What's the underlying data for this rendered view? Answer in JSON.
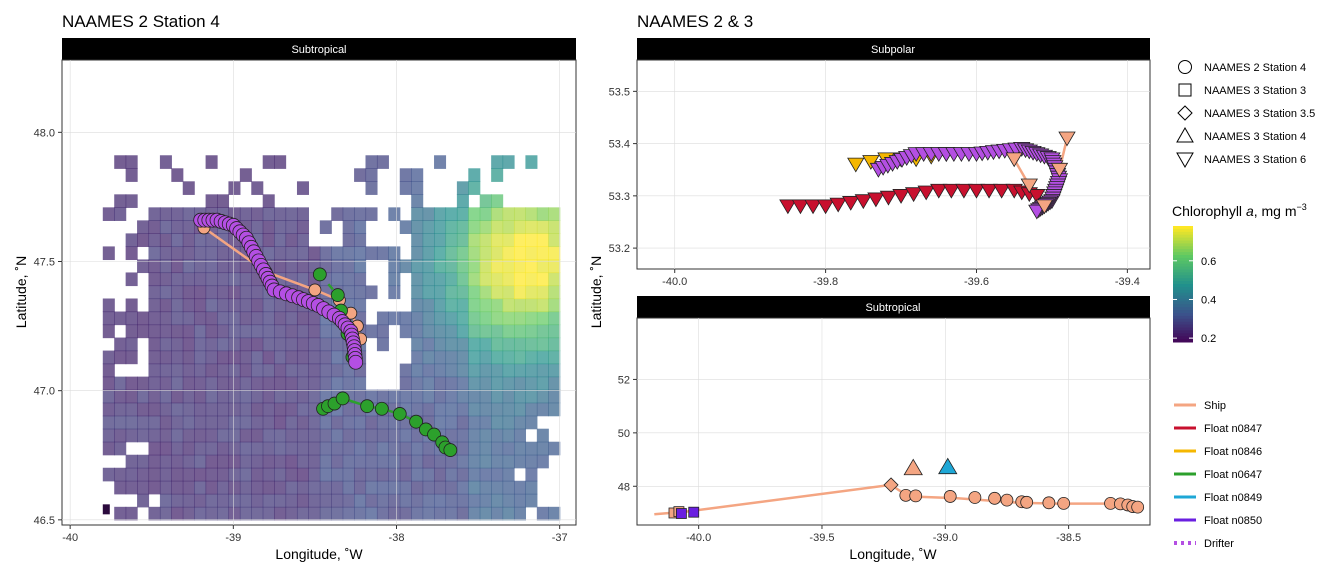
{
  "chart_data": [
    {
      "type": "scatter",
      "title": "NAAMES 2 Station 4",
      "facet": "Subtropical",
      "xlabel": "Longitude, ˚W",
      "ylabel": "Latitude, ˚N",
      "xlim": [
        -40.05,
        -36.9
      ],
      "ylim": [
        46.48,
        48.28
      ],
      "xticks": [
        -40,
        -39,
        -38,
        -37
      ],
      "yticks": [
        46.5,
        47.0,
        47.5,
        48.0
      ],
      "xtick_labels": [
        "-40",
        "-39",
        "-38",
        "-37"
      ],
      "ytick_labels": [
        "46.5",
        "47.0",
        "47.5",
        "48.0"
      ],
      "background": "chlorophyll raster (mg m-3)",
      "series": [
        {
          "name": "Ship",
          "color": "#F4A582",
          "points": [
            [
              -39.18,
              47.63
            ],
            [
              -38.8,
              47.46
            ],
            [
              -38.5,
              47.39
            ],
            [
              -38.35,
              47.35
            ],
            [
              -38.28,
              47.3
            ],
            [
              -38.24,
              47.25
            ],
            [
              -38.22,
              47.2
            ]
          ]
        },
        {
          "name": "Float n0647",
          "color": "#2CA02C",
          "points": [
            [
              -38.47,
              47.45
            ],
            [
              -38.36,
              47.37
            ],
            [
              -38.34,
              47.31
            ],
            [
              -38.3,
              47.22
            ],
            [
              -38.27,
              47.13
            ],
            [
              -38.45,
              46.93
            ],
            [
              -38.42,
              46.94
            ],
            [
              -38.38,
              46.95
            ],
            [
              -38.33,
              46.97
            ],
            [
              -38.18,
              46.94
            ],
            [
              -38.09,
              46.93
            ],
            [
              -37.98,
              46.91
            ],
            [
              -37.88,
              46.88
            ],
            [
              -37.82,
              46.85
            ],
            [
              -37.77,
              46.83
            ],
            [
              -37.72,
              46.8
            ],
            [
              -37.7,
              46.78
            ],
            [
              -37.67,
              46.77
            ]
          ]
        },
        {
          "name": "Drifter",
          "color": "#B44FE3",
          "points": [
            [
              -39.2,
              47.66
            ],
            [
              -39.1,
              47.66
            ],
            [
              -39.0,
              47.64
            ],
            [
              -38.92,
              47.59
            ],
            [
              -38.86,
              47.52
            ],
            [
              -38.8,
              47.45
            ],
            [
              -38.75,
              47.39
            ],
            [
              -38.6,
              47.36
            ],
            [
              -38.48,
              47.33
            ],
            [
              -38.35,
              47.28
            ],
            [
              -38.28,
              47.23
            ],
            [
              -38.26,
              47.17
            ],
            [
              -38.25,
              47.11
            ]
          ]
        }
      ]
    },
    {
      "type": "scatter",
      "title": "NAAMES 2 & 3",
      "facet": "Subpolar",
      "xlabel": "Longitude, ˚W",
      "ylabel": "Latitude, ˚N",
      "xlim": [
        -40.05,
        -39.37
      ],
      "ylim": [
        53.16,
        53.56
      ],
      "xticks": [
        -40.0,
        -39.8,
        -39.6,
        -39.4
      ],
      "yticks": [
        53.2,
        53.3,
        53.4,
        53.5
      ],
      "xtick_labels": [
        "-40.0",
        "-39.8",
        "-39.6",
        "-39.4"
      ],
      "ytick_labels": [
        "53.2",
        "53.3",
        "53.4",
        "53.5"
      ],
      "shape": "NAAMES 3 Station 6",
      "series": [
        {
          "name": "Float n0847",
          "color": "#C8102E",
          "points": [
            [
              -39.85,
              53.28
            ],
            [
              -39.8,
              53.28
            ],
            [
              -39.75,
              53.29
            ],
            [
              -39.7,
              53.3
            ],
            [
              -39.65,
              53.31
            ],
            [
              -39.6,
              53.31
            ],
            [
              -39.55,
              53.31
            ],
            [
              -39.52,
              53.3
            ]
          ]
        },
        {
          "name": "Float n0846",
          "color": "#F5B700",
          "points": [
            [
              -39.76,
              53.36
            ],
            [
              -39.72,
              53.37
            ],
            [
              -39.68,
              53.37
            ],
            [
              -39.64,
              53.38
            ]
          ]
        },
        {
          "name": "Drifter",
          "color": "#B44FE3",
          "points": [
            [
              -39.73,
              53.35
            ],
            [
              -39.68,
              53.38
            ],
            [
              -39.6,
              53.38
            ],
            [
              -39.54,
              53.39
            ],
            [
              -39.5,
              53.37
            ],
            [
              -39.49,
              53.33
            ],
            [
              -39.5,
              53.29
            ],
            [
              -39.52,
              53.27
            ]
          ]
        },
        {
          "name": "Ship",
          "color": "#F4A582",
          "points": [
            [
              -39.55,
              53.37
            ],
            [
              -39.53,
              53.32
            ],
            [
              -39.51,
              53.28
            ],
            [
              -39.49,
              53.35
            ],
            [
              -39.48,
              53.41
            ]
          ]
        }
      ]
    },
    {
      "type": "scatter",
      "title": "",
      "facet": "Subtropical",
      "xlabel": "Longitude, ˚W",
      "ylabel": "Latitude, ˚N",
      "xlim": [
        -40.25,
        -38.17
      ],
      "ylim": [
        46.55,
        54.3
      ],
      "xticks": [
        -40.0,
        -39.5,
        -39.0,
        -38.5
      ],
      "yticks": [
        48,
        50,
        52
      ],
      "xtick_labels": [
        "-40.0",
        "-39.5",
        "-39.0",
        "-38.5"
      ],
      "ytick_labels": [
        "48",
        "50",
        "52"
      ],
      "series": [
        {
          "name": "Ship",
          "color": "#F4A582",
          "points": [
            [
              -40.18,
              46.95
            ],
            [
              -40.05,
              47.05
            ],
            [
              -39.22,
              48.05
            ],
            [
              -39.15,
              47.62
            ],
            [
              -38.95,
              47.55
            ],
            [
              -38.7,
              47.38
            ],
            [
              -38.55,
              47.35
            ],
            [
              -38.3,
              47.35
            ],
            [
              -38.2,
              47.22
            ]
          ]
        },
        {
          "name": "NAAMES 2 Station 4",
          "color": "#F4A582",
          "points": [
            [
              -39.16,
              47.66
            ],
            [
              -39.12,
              47.64
            ],
            [
              -38.98,
              47.62
            ],
            [
              -38.88,
              47.58
            ],
            [
              -38.8,
              47.55
            ],
            [
              -38.75,
              47.48
            ],
            [
              -38.69,
              47.42
            ],
            [
              -38.67,
              47.4
            ],
            [
              -38.58,
              47.38
            ],
            [
              -38.52,
              47.36
            ],
            [
              -38.33,
              47.36
            ],
            [
              -38.29,
              47.34
            ],
            [
              -38.26,
              47.3
            ],
            [
              -38.24,
              47.24
            ],
            [
              -38.22,
              47.22
            ]
          ]
        },
        {
          "name": "NAAMES 3 Station 3",
          "color": "#F4A582",
          "points": [
            [
              -40.1,
              47.0
            ],
            [
              -40.08,
              47.05
            ]
          ]
        },
        {
          "name": "NAAMES 3 Station 3.5",
          "color": "#F4A582",
          "points": [
            [
              -39.22,
              48.05
            ]
          ]
        },
        {
          "name": "NAAMES 3 Station 4 (Ship)",
          "color": "#F4A582",
          "points": [
            [
              -39.13,
              48.7
            ]
          ]
        },
        {
          "name": "NAAMES 3 Station 4 (Float n0849)",
          "color": "#1EA7D6",
          "points": [
            [
              -38.99,
              48.74
            ]
          ]
        },
        {
          "name": "Float n0850",
          "color": "#6A1FE0",
          "points": [
            [
              -40.07,
              46.98
            ],
            [
              -40.02,
              47.03
            ]
          ]
        }
      ]
    }
  ],
  "legend": {
    "shapes": [
      {
        "shape": "circle",
        "label": "NAAMES 2 Station 4"
      },
      {
        "shape": "square",
        "label": "NAAMES 3 Station 3"
      },
      {
        "shape": "diamond",
        "label": "NAAMES 3 Station 3.5"
      },
      {
        "shape": "triangle-up",
        "label": "NAAMES 3 Station 4"
      },
      {
        "shape": "triangle-down",
        "label": "NAAMES 3 Station 6"
      }
    ],
    "colorbar": {
      "title": "Chlorophyll a, mg m⁻³",
      "title_main": "Chlorophyll ",
      "title_italic": "a",
      "title_units": ", mg m",
      "title_sup": "−3",
      "ticks": [
        0.2,
        0.4,
        0.6
      ],
      "tick_labels": [
        "0.2",
        "0.4",
        "0.6"
      ],
      "range": [
        0.18,
        0.78
      ],
      "palette": [
        "#440154",
        "#3B528B",
        "#21908C",
        "#5DC863",
        "#FDE725"
      ]
    },
    "lines": [
      {
        "label": "Ship",
        "color": "#F4A582",
        "style": "solid"
      },
      {
        "label": "Float n0847",
        "color": "#C8102E",
        "style": "solid"
      },
      {
        "label": "Float n0846",
        "color": "#F5B700",
        "style": "solid"
      },
      {
        "label": "Float n0647",
        "color": "#2CA02C",
        "style": "solid"
      },
      {
        "label": "Float n0849",
        "color": "#1EA7D6",
        "style": "solid"
      },
      {
        "label": "Float n0850",
        "color": "#6A1FE0",
        "style": "solid"
      },
      {
        "label": "Drifter",
        "color": "#B44FE3",
        "style": "dotted"
      }
    ]
  }
}
